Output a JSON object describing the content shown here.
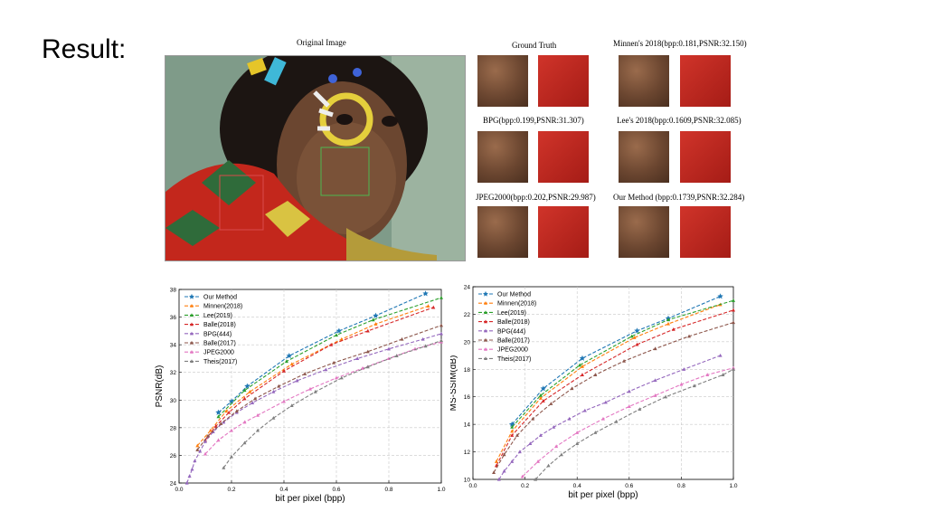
{
  "slide": {
    "title": "Result:"
  },
  "figure": {
    "original_caption": "Original Image",
    "crops": [
      {
        "caption": "Ground Truth"
      },
      {
        "caption": "Minnen's 2018(bpp:0.181,PSNR:32.150)"
      },
      {
        "caption": "BPG(bpp:0.199,PSNR:31.307)"
      },
      {
        "caption": "Lee's 2018(bpp:0.1609,PSNR:32.085)"
      },
      {
        "caption": "JPEG2000(bpp:0.202,PSNR:29.987)"
      },
      {
        "caption": "Our Method (bpp:0.1739,PSNR:32.284)"
      }
    ]
  },
  "colors": {
    "our_method": "#1f77b4",
    "minnen": "#ff7f0e",
    "lee": "#2ca02c",
    "balle2018": "#d62728",
    "bpg": "#9467bd",
    "balle2017": "#8c564b",
    "jpeg2000": "#e377c2",
    "theis": "#7f7f7f"
  },
  "chart_data": [
    {
      "type": "line",
      "xlabel": "bit per pixel (bpp)",
      "ylabel": "PSNR(dB)",
      "xlim": [
        0.0,
        1.0
      ],
      "ylim": [
        24,
        38
      ],
      "xticks": [
        "0.0",
        "0.2",
        "0.4",
        "0.6",
        "0.8",
        "1.0"
      ],
      "yticks": [
        "24",
        "26",
        "28",
        "30",
        "32",
        "34",
        "36",
        "38"
      ],
      "grid": true,
      "legend": "top-left",
      "series": [
        {
          "name": "Our Method",
          "color": "#1f77b4",
          "marker": "star",
          "x": [
            0.15,
            0.2,
            0.26,
            0.42,
            0.61,
            0.75,
            0.94
          ],
          "y": [
            29.1,
            29.9,
            31.0,
            33.2,
            35.0,
            36.1,
            37.7
          ]
        },
        {
          "name": "Minnen(2018)",
          "color": "#ff7f0e",
          "marker": "triangle",
          "x": [
            0.07,
            0.12,
            0.18,
            0.27,
            0.43,
            0.62,
            0.75,
            0.95
          ],
          "y": [
            26.7,
            27.8,
            29.2,
            30.6,
            32.6,
            34.4,
            35.5,
            36.8
          ]
        },
        {
          "name": "Lee(2019)",
          "color": "#2ca02c",
          "marker": "triangle",
          "x": [
            0.15,
            0.25,
            0.41,
            0.6,
            0.74,
            1.0
          ],
          "y": [
            28.8,
            30.7,
            32.8,
            34.7,
            35.8,
            37.4
          ]
        },
        {
          "name": "Balle(2018)",
          "color": "#d62728",
          "marker": "triangle",
          "x": [
            0.1,
            0.14,
            0.19,
            0.25,
            0.4,
            0.58,
            0.72,
            0.97
          ],
          "y": [
            27.1,
            28.1,
            29.1,
            30.1,
            32.1,
            34.0,
            35.0,
            36.7
          ]
        },
        {
          "name": "BPG(444)",
          "color": "#9467bd",
          "marker": "triangle",
          "x": [
            0.03,
            0.04,
            0.05,
            0.06,
            0.08,
            0.1,
            0.13,
            0.17,
            0.22,
            0.28,
            0.36,
            0.45,
            0.56,
            0.68,
            0.8,
            0.93,
            1.0
          ],
          "y": [
            24.0,
            24.5,
            25.0,
            25.6,
            26.3,
            27.0,
            27.7,
            28.4,
            29.1,
            29.8,
            30.6,
            31.4,
            32.2,
            33.0,
            33.7,
            34.4,
            34.8
          ]
        },
        {
          "name": "Balle(2017)",
          "color": "#8c564b",
          "marker": "triangle",
          "x": [
            0.07,
            0.11,
            0.16,
            0.22,
            0.29,
            0.38,
            0.48,
            0.59,
            0.72,
            0.85,
            1.0
          ],
          "y": [
            26.4,
            27.4,
            28.3,
            29.2,
            30.1,
            31.0,
            31.9,
            32.7,
            33.5,
            34.4,
            35.4
          ]
        },
        {
          "name": "JPEG2000",
          "color": "#e377c2",
          "marker": "triangle",
          "x": [
            0.1,
            0.15,
            0.2,
            0.25,
            0.3,
            0.4,
            0.5,
            0.6,
            0.7,
            0.8,
            0.9,
            1.0
          ],
          "y": [
            26.1,
            27.1,
            27.8,
            28.4,
            28.9,
            29.9,
            30.8,
            31.6,
            32.3,
            33.0,
            33.7,
            34.2
          ]
        },
        {
          "name": "Theis(2017)",
          "color": "#7f7f7f",
          "marker": "triangle",
          "x": [
            0.17,
            0.2,
            0.25,
            0.3,
            0.36,
            0.43,
            0.52,
            0.62,
            0.72,
            0.83,
            0.94,
            1.0
          ],
          "y": [
            25.1,
            25.9,
            26.9,
            27.8,
            28.7,
            29.6,
            30.6,
            31.6,
            32.4,
            33.2,
            33.9,
            34.3
          ]
        }
      ]
    },
    {
      "type": "line",
      "xlabel": "bit per pixel (bpp)",
      "ylabel": "MS-SSIM(dB)",
      "xlim": [
        0.0,
        1.0
      ],
      "ylim": [
        10,
        24
      ],
      "xticks": [
        "0.0",
        "0.2",
        "0.4",
        "0.6",
        "0.8",
        "1.0"
      ],
      "yticks": [
        "10",
        "12",
        "14",
        "16",
        "18",
        "20",
        "22",
        "24"
      ],
      "grid": true,
      "legend": "top-left",
      "series": [
        {
          "name": "Our Method",
          "color": "#1f77b4",
          "marker": "star",
          "x": [
            0.15,
            0.27,
            0.42,
            0.63,
            0.75,
            0.95
          ],
          "y": [
            14.0,
            16.6,
            18.8,
            20.8,
            21.7,
            23.3
          ]
        },
        {
          "name": "Minnen(2018)",
          "color": "#ff7f0e",
          "marker": "triangle",
          "x": [
            0.09,
            0.15,
            0.26,
            0.42,
            0.62,
            0.75,
            0.95
          ],
          "y": [
            11.3,
            13.5,
            15.9,
            18.2,
            20.3,
            21.3,
            22.7
          ]
        },
        {
          "name": "Lee(2019)",
          "color": "#2ca02c",
          "marker": "triangle",
          "x": [
            0.15,
            0.26,
            0.41,
            0.61,
            0.75,
            1.0
          ],
          "y": [
            13.8,
            16.1,
            18.3,
            20.4,
            21.6,
            23.0
          ]
        },
        {
          "name": "Balle(2018)",
          "color": "#d62728",
          "marker": "triangle",
          "x": [
            0.09,
            0.15,
            0.27,
            0.42,
            0.63,
            0.77,
            1.0
          ],
          "y": [
            11.0,
            13.2,
            15.7,
            17.6,
            19.8,
            20.9,
            22.3
          ]
        },
        {
          "name": "BPG(444)",
          "color": "#9467bd",
          "marker": "triangle",
          "x": [
            0.1,
            0.12,
            0.15,
            0.18,
            0.22,
            0.26,
            0.31,
            0.37,
            0.43,
            0.51,
            0.6,
            0.7,
            0.81,
            0.95
          ],
          "y": [
            10.0,
            10.6,
            11.3,
            12.0,
            12.6,
            13.2,
            13.8,
            14.4,
            15.0,
            15.6,
            16.4,
            17.2,
            18.0,
            19.0
          ]
        },
        {
          "name": "Balle(2017)",
          "color": "#8c564b",
          "marker": "triangle",
          "x": [
            0.08,
            0.12,
            0.17,
            0.23,
            0.3,
            0.38,
            0.47,
            0.58,
            0.7,
            0.83,
            1.0
          ],
          "y": [
            10.5,
            11.8,
            13.2,
            14.4,
            15.5,
            16.6,
            17.6,
            18.6,
            19.5,
            20.4,
            21.4
          ]
        },
        {
          "name": "JPEG2000",
          "color": "#e377c2",
          "marker": "triangle",
          "x": [
            0.19,
            0.25,
            0.32,
            0.4,
            0.5,
            0.6,
            0.7,
            0.8,
            0.9,
            1.0
          ],
          "y": [
            10.2,
            11.3,
            12.4,
            13.4,
            14.4,
            15.3,
            16.1,
            16.9,
            17.6,
            18.1
          ]
        },
        {
          "name": "Theis(2017)",
          "color": "#7f7f7f",
          "marker": "triangle",
          "x": [
            0.24,
            0.29,
            0.34,
            0.4,
            0.47,
            0.55,
            0.64,
            0.74,
            0.85,
            0.96,
            1.0
          ],
          "y": [
            10.0,
            11.0,
            11.8,
            12.6,
            13.4,
            14.2,
            15.1,
            16.0,
            16.8,
            17.6,
            18.0
          ]
        }
      ]
    }
  ]
}
